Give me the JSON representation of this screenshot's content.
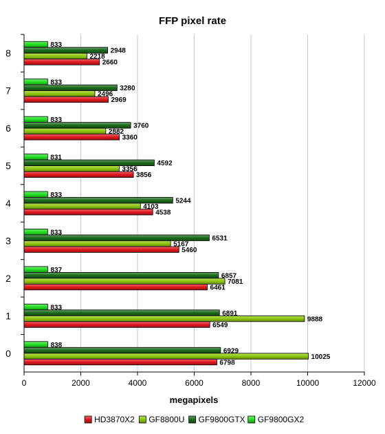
{
  "chart_data": {
    "type": "bar",
    "orientation": "horizontal",
    "title": "FFP pixel rate",
    "xlabel": "megapixels",
    "ylabel": "",
    "xlim": [
      0,
      12000
    ],
    "x_ticks": [
      0,
      2000,
      4000,
      6000,
      8000,
      10000,
      12000
    ],
    "grid": "vertical",
    "legend_position": "bottom",
    "categories": [
      "0",
      "1",
      "2",
      "3",
      "4",
      "5",
      "6",
      "7",
      "8"
    ],
    "series": [
      {
        "name": "HD3870X2",
        "color": "#e0181e",
        "values": [
          6798,
          6549,
          6461,
          5460,
          4538,
          3856,
          3360,
          2969,
          2660
        ]
      },
      {
        "name": "GF8800U",
        "color": "#8fc60a",
        "values": [
          10025,
          9888,
          7081,
          5167,
          4103,
          3356,
          2882,
          2496,
          2218
        ]
      },
      {
        "name": "GF9800GTX",
        "color": "#1b6b1b",
        "values": [
          6929,
          6891,
          6857,
          6531,
          5244,
          4592,
          3760,
          3280,
          2948
        ]
      },
      {
        "name": "GF9800GX2",
        "color": "#22e022",
        "values": [
          838,
          833,
          837,
          833,
          833,
          831,
          833,
          833,
          833
        ]
      }
    ]
  }
}
